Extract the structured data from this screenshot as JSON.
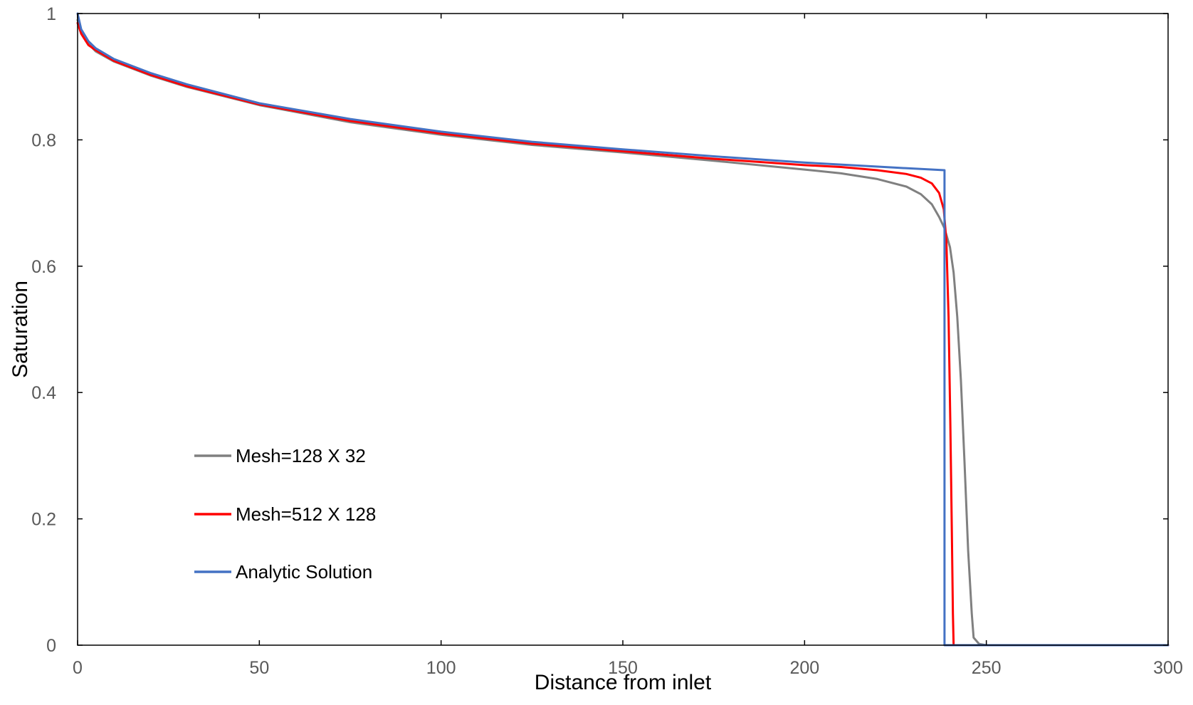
{
  "chart_data": {
    "type": "line",
    "title": "",
    "xlabel": "Distance from inlet",
    "ylabel": "Saturation",
    "xlim": [
      0,
      300
    ],
    "ylim": [
      0,
      1
    ],
    "x_ticks": [
      "0",
      "50",
      "100",
      "150",
      "200",
      "250",
      "300"
    ],
    "y_ticks": [
      "0",
      "0.2",
      "0.4",
      "0.6",
      "0.8",
      "1"
    ],
    "x_tick_values": [
      0,
      50,
      100,
      150,
      200,
      250,
      300
    ],
    "y_tick_values": [
      0,
      0.2,
      0.4,
      0.6,
      0.8,
      1
    ],
    "grid": false,
    "legend_position": "lower-left",
    "series": [
      {
        "name": "Mesh=128 X 32",
        "color": "#808080",
        "points": [
          [
            0,
            0.99
          ],
          [
            1,
            0.97
          ],
          [
            3,
            0.952
          ],
          [
            5,
            0.94
          ],
          [
            10,
            0.924
          ],
          [
            20,
            0.902
          ],
          [
            30,
            0.884
          ],
          [
            50,
            0.855
          ],
          [
            75,
            0.828
          ],
          [
            100,
            0.808
          ],
          [
            125,
            0.792
          ],
          [
            150,
            0.78
          ],
          [
            175,
            0.767
          ],
          [
            200,
            0.753
          ],
          [
            210,
            0.747
          ],
          [
            220,
            0.738
          ],
          [
            228,
            0.726
          ],
          [
            232,
            0.714
          ],
          [
            235,
            0.698
          ],
          [
            237,
            0.678
          ],
          [
            238.5,
            0.66
          ],
          [
            240,
            0.63
          ],
          [
            241,
            0.59
          ],
          [
            242,
            0.52
          ],
          [
            243,
            0.42
          ],
          [
            244,
            0.29
          ],
          [
            245,
            0.15
          ],
          [
            246,
            0.05
          ],
          [
            246.5,
            0.012
          ],
          [
            248,
            0.002
          ],
          [
            250,
            0
          ],
          [
            300,
            0
          ]
        ]
      },
      {
        "name": "Mesh=512 X 128",
        "color": "#ff0000",
        "points": [
          [
            0,
            0.985
          ],
          [
            1,
            0.968
          ],
          [
            3,
            0.95
          ],
          [
            5,
            0.942
          ],
          [
            10,
            0.925
          ],
          [
            20,
            0.903
          ],
          [
            30,
            0.885
          ],
          [
            50,
            0.856
          ],
          [
            75,
            0.83
          ],
          [
            100,
            0.81
          ],
          [
            125,
            0.794
          ],
          [
            150,
            0.782
          ],
          [
            175,
            0.77
          ],
          [
            200,
            0.76
          ],
          [
            210,
            0.757
          ],
          [
            220,
            0.752
          ],
          [
            228,
            0.746
          ],
          [
            232,
            0.74
          ],
          [
            235,
            0.731
          ],
          [
            237,
            0.716
          ],
          [
            238.3,
            0.69
          ],
          [
            239,
            0.64
          ],
          [
            239.6,
            0.52
          ],
          [
            240.1,
            0.35
          ],
          [
            240.5,
            0.18
          ],
          [
            240.8,
            0.05
          ],
          [
            241,
            0
          ],
          [
            300,
            0
          ]
        ]
      },
      {
        "name": "Analytic Solution",
        "color": "#4472c4",
        "points": [
          [
            0,
            1
          ],
          [
            1,
            0.975
          ],
          [
            3,
            0.956
          ],
          [
            5,
            0.945
          ],
          [
            10,
            0.928
          ],
          [
            20,
            0.906
          ],
          [
            30,
            0.888
          ],
          [
            50,
            0.858
          ],
          [
            75,
            0.833
          ],
          [
            100,
            0.813
          ],
          [
            125,
            0.797
          ],
          [
            150,
            0.785
          ],
          [
            175,
            0.774
          ],
          [
            200,
            0.764
          ],
          [
            225,
            0.756
          ],
          [
            238.5,
            0.752
          ],
          [
            238.5,
            0
          ],
          [
            300,
            0
          ]
        ]
      }
    ]
  }
}
